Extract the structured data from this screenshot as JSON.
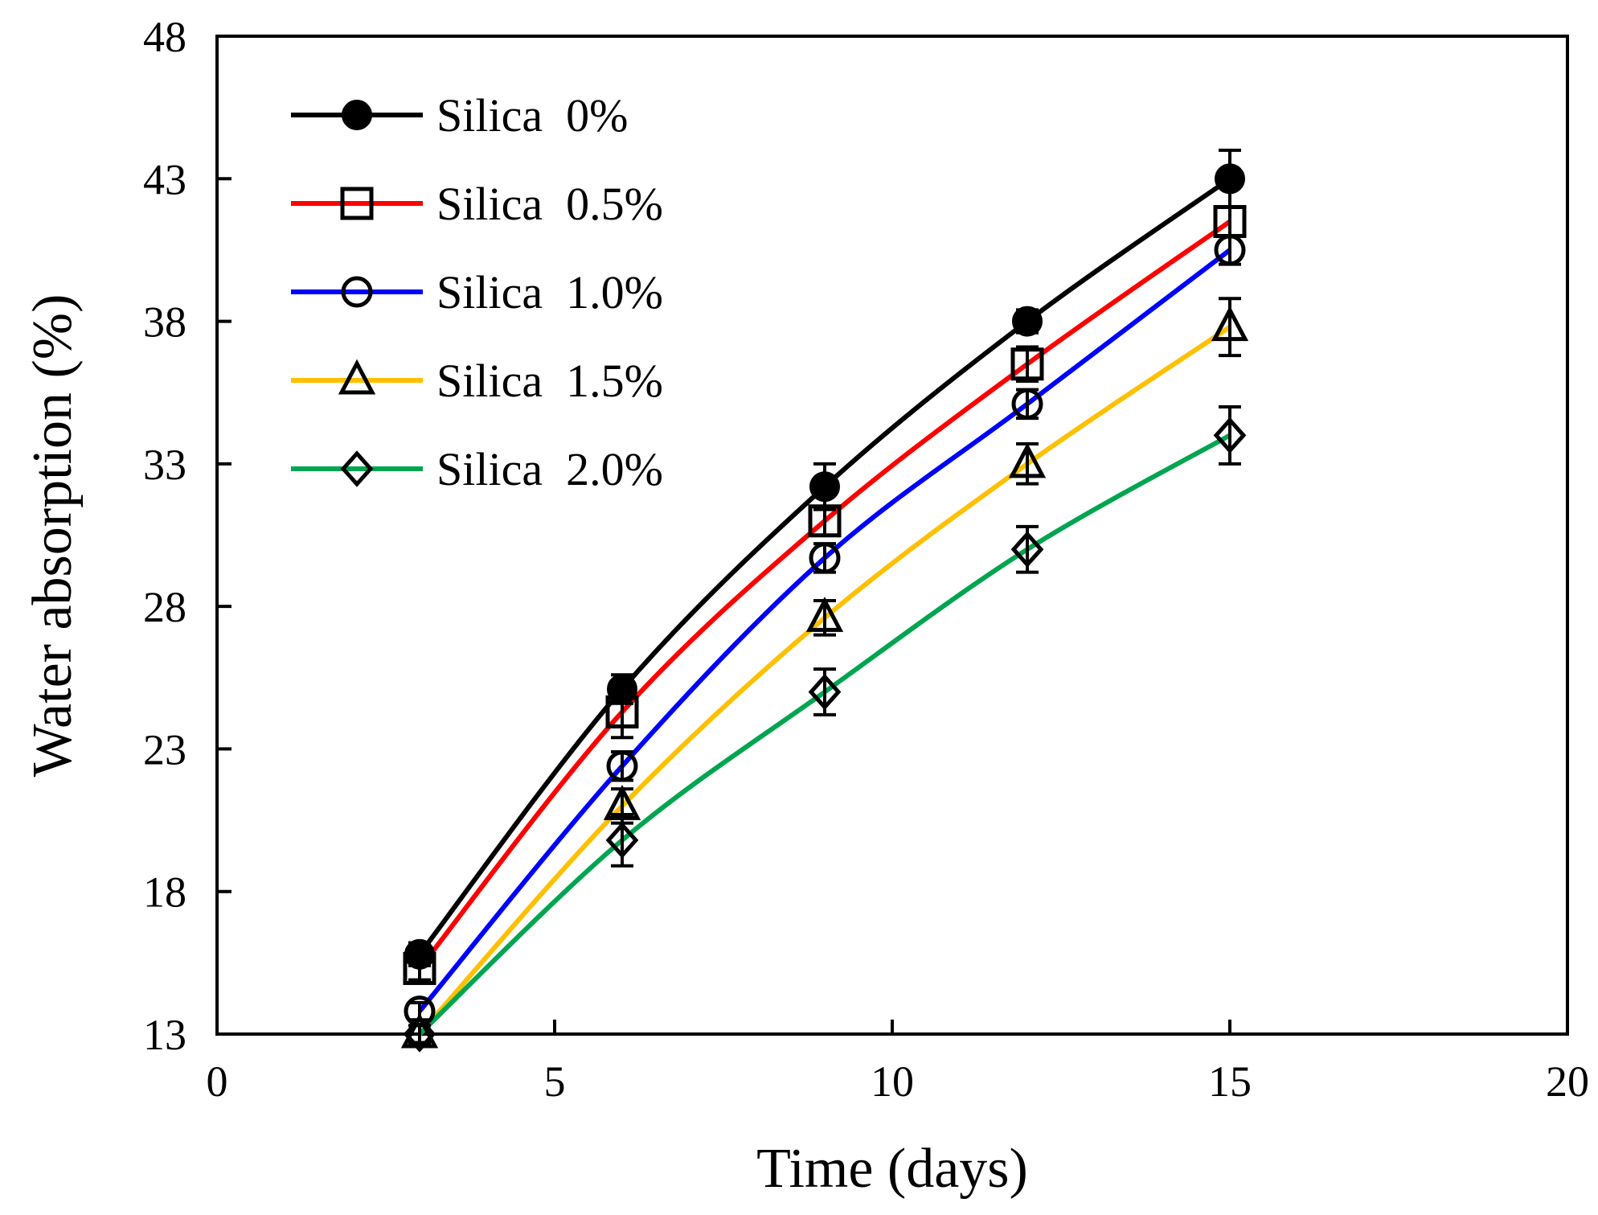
{
  "chart_data": {
    "type": "line",
    "title": "",
    "xlabel": "Time (days)",
    "ylabel": "Water absorption (%)",
    "xlim": [
      0,
      20
    ],
    "ylim": [
      13,
      48
    ],
    "xticks": [
      0,
      5,
      10,
      15,
      20
    ],
    "yticks": [
      13,
      18,
      23,
      28,
      33,
      38,
      43,
      48
    ],
    "grid": false,
    "legend_position": "top-left",
    "x": [
      3,
      6,
      9,
      12,
      15
    ],
    "series": [
      {
        "name": "Silica  0%",
        "color": "#000000",
        "marker": "filled-circle",
        "values": [
          15.8,
          25.1,
          32.2,
          38.0,
          43.0
        ],
        "errors": [
          0.4,
          0.5,
          0.8,
          0.4,
          1.0
        ]
      },
      {
        "name": "Silica  0.5%",
        "color": "#ff0000",
        "marker": "open-square",
        "values": [
          15.3,
          24.3,
          31.0,
          36.5,
          41.5
        ],
        "errors": [
          0.4,
          0.9,
          0.5,
          0.6,
          0.5
        ]
      },
      {
        "name": "Silica  1.0%",
        "color": "#0000ff",
        "marker": "open-circle",
        "values": [
          13.8,
          22.4,
          29.7,
          35.1,
          40.5
        ],
        "errors": [
          0.3,
          0.5,
          0.5,
          0.5,
          0.5
        ]
      },
      {
        "name": "Silica  1.5%",
        "color": "#ffc000",
        "marker": "open-triangle",
        "values": [
          13.0,
          21.0,
          27.6,
          33.0,
          37.8
        ],
        "errors": [
          0.3,
          0.6,
          0.6,
          0.7,
          1.0
        ]
      },
      {
        "name": "Silica  2.0%",
        "color": "#00a550",
        "marker": "open-diamond",
        "values": [
          13.0,
          19.8,
          25.0,
          30.0,
          34.0
        ],
        "errors": [
          0.3,
          0.9,
          0.8,
          0.8,
          1.0
        ]
      }
    ]
  }
}
